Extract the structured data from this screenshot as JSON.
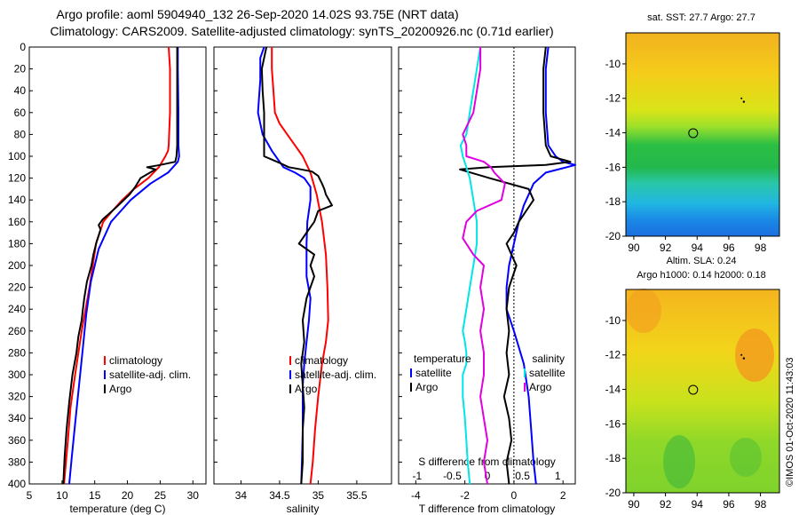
{
  "header": {
    "line1": "Argo profile: aoml 5904940_132 26-Sep-2020 14.02S 93.75E (NRT data)",
    "line2": "Climatology: CARS2009. Satellite-adjusted climatology: synTS_20200926.nc (0.71d earlier)"
  },
  "footer": {
    "stamp": "©IMOS 01-Oct-2020 11:43:03"
  },
  "colors": {
    "climatology": "#ff0000",
    "satellite": "#0000ff",
    "argo": "#000000",
    "sal_satellite": "#00e5e5",
    "sal_argo": "#e000e0"
  },
  "chart_data": [
    {
      "id": "temperature",
      "type": "line",
      "xlabel": "temperature (deg C)",
      "ylabel": "",
      "xlim": [
        5,
        32
      ],
      "ylim": [
        400,
        0
      ],
      "xticks": [
        5,
        10,
        15,
        20,
        25,
        30
      ],
      "yticks": [
        0,
        20,
        40,
        60,
        80,
        100,
        120,
        140,
        160,
        180,
        200,
        220,
        240,
        260,
        280,
        300,
        320,
        340,
        360,
        380,
        400
      ],
      "legend": [
        "climatology",
        "satellite-adj. clim.",
        "Argo"
      ],
      "series": [
        {
          "name": "climatology",
          "color": "#ff0000",
          "x": [
            26.3,
            26.5,
            26.5,
            26.3,
            26.2,
            25.8,
            24.8,
            23.2,
            21.0,
            19.2,
            17.7,
            16.3,
            15.2,
            14.2,
            13.0,
            12.0,
            11.3,
            10.9,
            10.6,
            10.3
          ],
          "y": [
            0,
            20,
            60,
            90,
            95,
            100,
            110,
            120,
            130,
            140,
            150,
            160,
            180,
            220,
            260,
            300,
            330,
            360,
            380,
            400
          ]
        },
        {
          "name": "satellite-adj. clim.",
          "color": "#0000ff",
          "x": [
            27.7,
            27.7,
            27.8,
            27.8,
            27.9,
            27.7,
            26.2,
            23.5,
            20.5,
            17.5,
            15.6,
            14.4,
            13.7,
            13.2,
            12.6,
            12.0,
            11.5,
            11.1
          ],
          "y": [
            0,
            20,
            60,
            90,
            100,
            105,
            115,
            125,
            140,
            160,
            185,
            215,
            245,
            275,
            310,
            345,
            375,
            400
          ]
        },
        {
          "name": "Argo",
          "color": "#000000",
          "x": [
            27.6,
            27.6,
            27.6,
            27.6,
            27.5,
            27.3,
            25.0,
            23.0,
            24.3,
            22.0,
            21.2,
            20.3,
            18.6,
            17.3,
            16.2,
            15.6,
            15.9,
            15.3,
            14.8,
            14.5,
            13.8,
            13.4,
            13.2,
            13.0,
            12.5,
            12.2,
            11.6,
            11.1,
            10.7,
            10.4,
            10.2
          ],
          "y": [
            0,
            20,
            60,
            90,
            100,
            105,
            108,
            110,
            112,
            120,
            128,
            135,
            145,
            152,
            158,
            163,
            167,
            178,
            190,
            200,
            215,
            230,
            240,
            250,
            265,
            280,
            300,
            325,
            350,
            375,
            400
          ]
        }
      ]
    },
    {
      "id": "salinity",
      "type": "line",
      "xlabel": "salinity",
      "xlim": [
        33.65,
        35.95
      ],
      "ylim": [
        400,
        0
      ],
      "xticks": [
        34,
        34.5,
        35,
        35.5
      ],
      "xtick_labels": [
        "34",
        "34.5",
        "35",
        "35.5"
      ],
      "legend": [
        "climatology",
        "satellite-adj. clim.",
        "Argo"
      ],
      "series": [
        {
          "name": "climatology",
          "color": "#ff0000",
          "x": [
            34.4,
            34.4,
            34.42,
            34.44,
            34.5,
            34.6,
            34.7,
            34.8,
            34.9,
            34.98,
            35.05,
            35.1,
            35.12,
            35.13,
            35.1,
            35.05,
            35.0,
            34.96,
            34.93,
            34.9
          ],
          "y": [
            0,
            20,
            40,
            60,
            70,
            80,
            90,
            100,
            115,
            135,
            160,
            190,
            220,
            250,
            270,
            290,
            320,
            350,
            380,
            400
          ]
        },
        {
          "name": "satellite-adj. clim.",
          "color": "#0000ff",
          "x": [
            34.3,
            34.25,
            34.25,
            34.22,
            34.28,
            34.4,
            34.55,
            34.7,
            34.82,
            34.9,
            34.9,
            34.86,
            34.85,
            34.85,
            34.9,
            34.88,
            34.85,
            34.82,
            34.8,
            34.8,
            34.8,
            34.79,
            34.78
          ],
          "y": [
            0,
            10,
            30,
            60,
            80,
            95,
            110,
            115,
            120,
            128,
            140,
            160,
            180,
            210,
            230,
            250,
            270,
            290,
            310,
            330,
            350,
            380,
            400
          ]
        },
        {
          "name": "Argo",
          "color": "#000000",
          "x": [
            34.33,
            34.27,
            34.28,
            34.3,
            34.3,
            34.5,
            34.62,
            34.78,
            34.92,
            35.0,
            35.05,
            35.08,
            35.1,
            35.18,
            35.0,
            34.95,
            34.85,
            34.75,
            34.95,
            34.9,
            34.95,
            34.85,
            34.8,
            34.82,
            34.78,
            34.8,
            34.82,
            34.8,
            34.8,
            34.78
          ],
          "y": [
            0,
            20,
            40,
            60,
            100,
            106,
            110,
            112,
            114,
            118,
            125,
            130,
            135,
            145,
            150,
            160,
            170,
            180,
            190,
            200,
            210,
            230,
            250,
            270,
            290,
            310,
            330,
            350,
            380,
            400
          ]
        }
      ]
    },
    {
      "id": "difference",
      "type": "line",
      "xlabel": "T difference from climatology",
      "xlabel_top": "S difference from climatology",
      "t_xlim": [
        -4.7,
        2.5
      ],
      "ylim": [
        400,
        0
      ],
      "t_xticks": [
        -4,
        -2,
        0,
        2
      ],
      "s_xticks": [
        -1,
        -0.5,
        0,
        0.5,
        1
      ],
      "s_xtick_labels": [
        "-1",
        "-0.5",
        "0",
        "0.5",
        "1"
      ],
      "legend_t": {
        "title": "temperature",
        "items": [
          "satellite",
          "Argo"
        ]
      },
      "legend_s": {
        "title": "salinity",
        "items": [
          "satellite",
          "Argo"
        ]
      },
      "series": [
        {
          "name": "T satellite",
          "color": "#0000ff",
          "axis": "T",
          "x": [
            1.4,
            1.3,
            1.3,
            1.4,
            1.7,
            2.0,
            2.5,
            1.3,
            0.8,
            0.6,
            0.4,
            0.2,
            0.0,
            -0.2,
            -0.3,
            -0.3,
            0.0,
            0.4,
            0.6,
            0.7,
            0.8,
            0.9
          ],
          "y": [
            0,
            20,
            60,
            90,
            100,
            105,
            108,
            115,
            125,
            135,
            145,
            160,
            180,
            200,
            220,
            240,
            260,
            290,
            320,
            350,
            380,
            400
          ]
        },
        {
          "name": "T Argo",
          "color": "#000000",
          "axis": "T",
          "x": [
            1.3,
            1.2,
            1.2,
            1.3,
            1.5,
            2.3,
            1.3,
            -1.0,
            -2.2,
            -1.0,
            0.6,
            0.8,
            0.5,
            0.2,
            0.0,
            -0.3,
            -0.1,
            0.1,
            -0.2,
            -0.3,
            -0.2,
            -0.3,
            -0.2,
            -0.4,
            -0.2,
            -0.1,
            -0.3,
            -0.2
          ],
          "y": [
            0,
            20,
            60,
            90,
            100,
            105,
            108,
            110,
            112,
            120,
            130,
            140,
            150,
            160,
            170,
            180,
            190,
            200,
            220,
            240,
            260,
            280,
            300,
            320,
            340,
            360,
            380,
            400
          ]
        },
        {
          "name": "S satellite",
          "color": "#00e5e5",
          "axis": "S",
          "x": [
            -0.1,
            -0.15,
            -0.25,
            -0.3,
            -0.38,
            -0.35,
            -0.3,
            -0.25,
            -0.2,
            -0.15,
            -0.15,
            -0.2,
            -0.25,
            -0.3,
            -0.35,
            -0.32,
            -0.3,
            -0.3,
            -0.35,
            -0.35,
            -0.32,
            -0.3,
            -0.28,
            -0.25
          ],
          "y": [
            0,
            20,
            60,
            80,
            90,
            100,
            110,
            120,
            140,
            160,
            180,
            200,
            220,
            240,
            260,
            270,
            280,
            290,
            300,
            320,
            340,
            360,
            380,
            400
          ]
        },
        {
          "name": "S Argo",
          "color": "#e000e0",
          "axis": "S",
          "x": [
            -0.1,
            -0.1,
            -0.2,
            -0.35,
            -0.3,
            -0.3,
            -0.05,
            0.05,
            0.1,
            0.25,
            0.2,
            -0.15,
            -0.3,
            -0.35,
            -0.2,
            -0.05,
            -0.1,
            -0.05,
            -0.1,
            -0.05,
            -0.05,
            -0.1,
            -0.05,
            0.0,
            -0.05,
            0.0
          ],
          "y": [
            0,
            20,
            60,
            80,
            90,
            100,
            105,
            110,
            115,
            125,
            140,
            150,
            160,
            175,
            190,
            200,
            220,
            240,
            260,
            280,
            300,
            320,
            340,
            360,
            380,
            400
          ]
        }
      ]
    },
    {
      "id": "map_sst",
      "type": "heatmap",
      "title": "sat. SST: 27.7 Argo: 27.7",
      "xticks": [
        90,
        92,
        94,
        96,
        98
      ],
      "yticks": [
        -10,
        -12,
        -14,
        -16,
        -18,
        -20
      ],
      "xlim": [
        89.5,
        99.2
      ],
      "ylim": [
        -20,
        -8.2
      ],
      "marker": {
        "lon": 93.75,
        "lat": -14.02
      }
    },
    {
      "id": "map_sla",
      "type": "heatmap",
      "title": "Altim. SLA: 0.24",
      "subtitle": "Argo h1000: 0.14 h2000: 0.18",
      "xticks": [
        90,
        92,
        94,
        96,
        98
      ],
      "yticks": [
        -10,
        -12,
        -14,
        -16,
        -18,
        -20
      ],
      "xlim": [
        89.5,
        99.2
      ],
      "ylim": [
        -20,
        -8.2
      ],
      "marker": {
        "lon": 93.75,
        "lat": -14.02
      }
    }
  ]
}
